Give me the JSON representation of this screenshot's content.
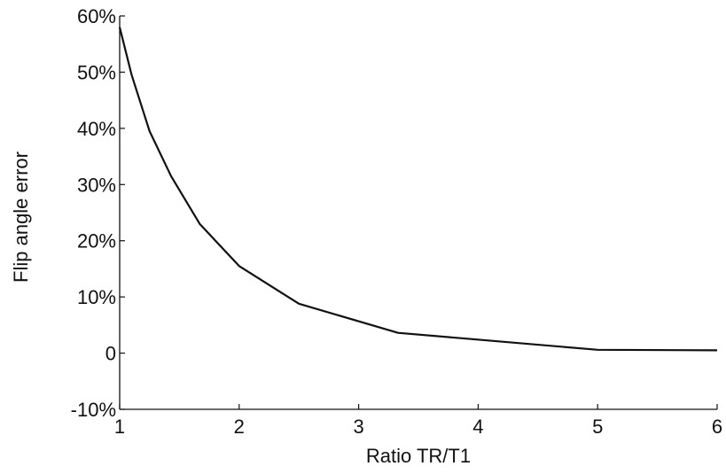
{
  "chart_data": {
    "type": "line",
    "title": "",
    "xlabel": "Ratio TR/T1",
    "ylabel": "Flip angle error",
    "xlim": [
      1,
      6
    ],
    "ylim": [
      -10,
      60
    ],
    "x_ticks": [
      1,
      2,
      3,
      4,
      5,
      6
    ],
    "x_tick_labels": [
      "1",
      "2",
      "3",
      "4",
      "5",
      "6"
    ],
    "y_ticks": [
      -10,
      0,
      10,
      20,
      30,
      40,
      50,
      60
    ],
    "y_tick_labels": [
      "-10%",
      "0",
      "10%",
      "20%",
      "30%",
      "40%",
      "50%",
      "60%"
    ],
    "grid": false,
    "legend": "none",
    "line_color": "#111111",
    "series": [
      {
        "x": [
          1.0,
          1.1,
          1.25,
          1.43,
          1.67,
          2.0,
          2.5,
          3.33,
          5.0,
          6.0
        ],
        "y": [
          58.0,
          49.5,
          39.5,
          31.5,
          23.0,
          15.5,
          8.8,
          3.6,
          0.6,
          0.5
        ]
      }
    ]
  }
}
